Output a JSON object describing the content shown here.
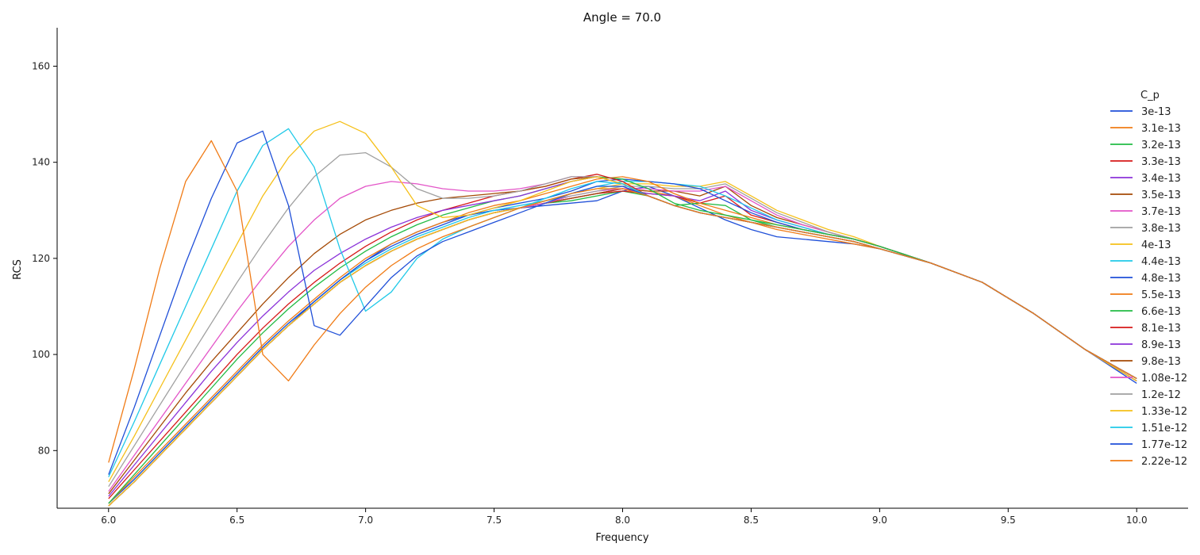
{
  "chart_data": {
    "type": "line",
    "title": "Angle = 70.0",
    "xlabel": "Frequency",
    "ylabel": "RCS",
    "xlim": [
      5.8,
      10.2
    ],
    "ylim": [
      68,
      168
    ],
    "xticks": [
      "6.0",
      "6.5",
      "7.0",
      "7.5",
      "8.0",
      "8.5",
      "9.0",
      "9.5",
      "10.0"
    ],
    "yticks": [
      "80",
      "100",
      "120",
      "140",
      "160"
    ],
    "grid": false,
    "legend": {
      "title": "C_p",
      "placement": "right"
    },
    "x": [
      6.0,
      6.1,
      6.2,
      6.3,
      6.4,
      6.5,
      6.6,
      6.7,
      6.8,
      6.9,
      7.0,
      7.1,
      7.2,
      7.3,
      7.4,
      7.5,
      7.6,
      7.7,
      7.8,
      7.9,
      8.0,
      8.1,
      8.2,
      8.3,
      8.4,
      8.5,
      8.6,
      8.7,
      8.8,
      8.9,
      9.0,
      9.2,
      9.4,
      9.6,
      9.8,
      10.0
    ],
    "series": [
      {
        "name": "3e-13",
        "color": "#1f4fd8",
        "values": [
          68.5,
          73.5,
          79,
          84.5,
          90,
          95.5,
          101,
          106,
          111,
          115.5,
          119.5,
          123,
          125.5,
          127.5,
          129,
          130,
          130.5,
          131,
          131.5,
          132,
          134,
          135,
          133,
          130.5,
          128,
          126,
          124.5,
          124,
          123.5,
          123,
          122,
          119,
          115,
          108.5,
          101,
          94
        ]
      },
      {
        "name": "3.1e-13",
        "color": "#f07b16",
        "values": [
          68.5,
          73.5,
          79,
          84.5,
          90,
          95.5,
          101,
          106,
          110.5,
          115,
          118.5,
          121.5,
          124,
          126,
          128,
          129.5,
          130.5,
          131.5,
          132.5,
          133.5,
          134.5,
          134,
          133,
          131,
          129,
          127.5,
          126,
          125,
          124,
          123,
          122,
          119,
          115,
          108.5,
          101,
          94.5
        ]
      },
      {
        "name": "3.2e-13",
        "color": "#22bb44",
        "values": [
          68.5,
          73.5,
          79,
          84.5,
          90,
          95.5,
          101,
          106,
          110.5,
          115,
          118.5,
          121.5,
          124,
          126,
          128,
          129.5,
          130.5,
          131.5,
          132,
          133,
          134,
          133,
          131,
          131.5,
          131,
          128,
          126.5,
          125.5,
          124.5,
          123.5,
          122,
          119,
          115,
          108.5,
          101,
          94.5
        ]
      },
      {
        "name": "3.3e-13",
        "color": "#d61a1a",
        "values": [
          68.5,
          73.5,
          79,
          84.5,
          90,
          95.5,
          101,
          106,
          110.5,
          115,
          118.5,
          121.5,
          124,
          126,
          128,
          129.5,
          130.5,
          131.5,
          132.5,
          133.5,
          134,
          133.5,
          133,
          131.5,
          133,
          129,
          127.5,
          126,
          125,
          124,
          122.5,
          119,
          115,
          108.5,
          101,
          94.5
        ]
      },
      {
        "name": "3.4e-13",
        "color": "#8b33d9",
        "values": [
          68.5,
          73.5,
          79,
          84.5,
          90,
          95.5,
          101,
          106,
          110.5,
          115,
          118.5,
          121.5,
          124,
          126,
          128,
          129.5,
          130.5,
          131.5,
          132.5,
          133.5,
          134.5,
          133.5,
          133,
          132,
          134,
          130,
          128,
          126.5,
          125,
          124,
          122.5,
          119,
          115,
          108.5,
          101,
          94.5
        ]
      },
      {
        "name": "3.5e-13",
        "color": "#a54a06",
        "values": [
          68.5,
          73.5,
          79,
          84.5,
          90,
          95.5,
          101,
          106,
          110.5,
          115,
          118.5,
          121.5,
          124,
          126,
          128,
          129.5,
          130.5,
          131.5,
          132.5,
          133.5,
          134.5,
          134,
          134,
          133,
          135,
          131,
          128.5,
          127,
          125.5,
          124,
          122.5,
          119,
          115,
          108.5,
          101,
          94.5
        ]
      },
      {
        "name": "3.7e-13",
        "color": "#e355c8",
        "values": [
          68.5,
          73.5,
          79,
          84.5,
          90,
          95.5,
          101,
          106,
          110.5,
          115,
          118.5,
          121.5,
          124,
          126,
          128,
          129.5,
          130.5,
          131.5,
          133,
          134,
          134.5,
          134.5,
          134,
          134,
          135,
          132,
          129,
          127,
          125.5,
          124,
          122.5,
          119,
          115,
          108.5,
          101,
          94.5
        ]
      },
      {
        "name": "3.8e-13",
        "color": "#a0a0a0",
        "values": [
          68.5,
          73.5,
          79,
          84.5,
          90,
          95.5,
          101,
          106,
          110.5,
          115,
          118.5,
          121.5,
          124,
          126,
          128,
          129.5,
          130.5,
          132,
          133,
          134,
          135,
          135,
          134.5,
          134.5,
          135.5,
          132.5,
          129.5,
          127.5,
          125.5,
          124,
          122.5,
          119,
          115,
          108.5,
          101,
          94.5
        ]
      },
      {
        "name": "4e-13",
        "color": "#f5c01a",
        "values": [
          68.5,
          73.5,
          79,
          84.5,
          90,
          95.5,
          101,
          106,
          110.5,
          115,
          118.5,
          121.5,
          124,
          126,
          128,
          129.5,
          130.5,
          132,
          133.5,
          134.5,
          135.5,
          135.5,
          135,
          135,
          136,
          133,
          130,
          128,
          126,
          124.5,
          122.5,
          119,
          115,
          108.5,
          101,
          94.5
        ]
      },
      {
        "name": "4.4e-13",
        "color": "#20c9e8",
        "values": [
          69,
          74,
          79.5,
          85,
          90.5,
          96,
          101.5,
          106.5,
          111,
          115.5,
          119,
          122,
          124.5,
          126.5,
          128.5,
          130,
          131,
          132,
          133.5,
          135,
          136,
          136,
          135.5,
          135,
          133,
          130.5,
          128,
          126.5,
          125,
          124,
          122.5,
          119,
          115,
          108.5,
          101,
          95
        ]
      },
      {
        "name": "4.8e-13",
        "color": "#1f4fd8",
        "values": [
          69,
          74,
          79.5,
          85,
          90.5,
          96,
          101.5,
          106.5,
          111,
          115.5,
          119.5,
          122.5,
          125,
          127,
          129,
          130.5,
          131.5,
          132.5,
          134,
          136,
          136.5,
          136,
          135.5,
          134.5,
          132,
          129.5,
          127.5,
          126,
          125,
          124,
          122.5,
          119,
          115,
          108.5,
          101,
          95
        ]
      },
      {
        "name": "5.5e-13",
        "color": "#f07b16",
        "values": [
          69,
          74.5,
          80,
          85.5,
          91,
          96.5,
          102,
          107,
          111.5,
          116,
          120,
          123,
          125.5,
          127.5,
          129.5,
          131,
          132,
          133.5,
          135,
          136.5,
          137,
          136,
          133.5,
          131.5,
          130,
          128.5,
          127,
          126,
          125,
          124,
          122.5,
          119,
          115,
          108.5,
          101,
          95
        ]
      },
      {
        "name": "6.6e-13",
        "color": "#22bb44",
        "values": [
          69,
          75,
          81,
          87,
          93,
          99,
          104.5,
          109.5,
          114,
          118,
          121.5,
          124.5,
          127,
          129,
          130.5,
          132,
          133,
          134.5,
          136,
          137,
          136.5,
          134.5,
          131.5,
          130,
          129,
          128,
          127,
          126,
          125,
          124,
          122.5,
          119,
          115,
          108.5,
          101,
          95
        ]
      },
      {
        "name": "8.1e-13",
        "color": "#d61a1a",
        "values": [
          70,
          76,
          82,
          88,
          94,
          100,
          105.5,
          110.5,
          115,
          119,
          122.5,
          125.5,
          128,
          130,
          131.5,
          133,
          134,
          135,
          136.5,
          137.5,
          136,
          133,
          131,
          129.5,
          128.5,
          127.5,
          126.5,
          125.5,
          124.5,
          123.5,
          122,
          119,
          115,
          108.5,
          101,
          95
        ]
      },
      {
        "name": "8.9e-13",
        "color": "#8b33d9",
        "values": [
          70.5,
          77,
          83.5,
          90,
          96.5,
          102.5,
          108,
          113,
          117.5,
          121,
          124,
          126.5,
          128.5,
          130,
          131,
          132,
          133,
          134.5,
          136,
          137,
          135.5,
          133,
          131,
          129.5,
          128.5,
          127.5,
          126.5,
          125.5,
          124.5,
          123.5,
          122,
          119,
          115,
          108.5,
          101,
          95
        ]
      },
      {
        "name": "9.8e-13",
        "color": "#a54a06",
        "values": [
          71,
          78,
          85,
          92,
          98.5,
          104.5,
          110.5,
          116,
          121,
          125,
          128,
          130,
          131.5,
          132.5,
          133,
          133.5,
          134,
          135,
          136.5,
          137,
          135.5,
          133,
          131,
          129.5,
          128.5,
          127.5,
          126.5,
          125.5,
          124.5,
          123.5,
          122,
          119,
          115,
          108.5,
          101,
          95
        ]
      },
      {
        "name": "1.08e-12",
        "color": "#e355c8",
        "values": [
          71.5,
          79,
          86.5,
          94,
          101.5,
          109,
          116,
          122.5,
          128,
          132.5,
          135,
          136,
          135.5,
          134.5,
          134,
          134,
          134.5,
          135.5,
          137,
          137,
          135.5,
          133,
          131,
          129.5,
          128.5,
          127.5,
          126.5,
          125.5,
          124.5,
          123.5,
          122,
          119,
          115,
          108.5,
          101,
          95
        ]
      },
      {
        "name": "1.2e-12",
        "color": "#a0a0a0",
        "values": [
          72.5,
          81,
          89.5,
          98,
          106.5,
          115,
          123,
          130.5,
          137,
          141.5,
          142,
          139,
          134.5,
          132.5,
          132.5,
          133,
          134,
          135.5,
          137,
          137,
          135.5,
          133,
          131,
          129.5,
          128.5,
          127.5,
          126.5,
          125.5,
          124.5,
          123.5,
          122,
          119,
          115,
          108.5,
          101,
          95
        ]
      },
      {
        "name": "1.33e-12",
        "color": "#f5c01a",
        "values": [
          73.5,
          83,
          93,
          103,
          113,
          123,
          133,
          141,
          146.5,
          148.5,
          146,
          139,
          131,
          128.5,
          129,
          130.5,
          132,
          134,
          136,
          137,
          135.5,
          133,
          131,
          129.5,
          128.5,
          127.5,
          126.5,
          125.5,
          124.5,
          123.5,
          122,
          119,
          115,
          108.5,
          101,
          95
        ]
      },
      {
        "name": "1.51e-12",
        "color": "#20c9e8",
        "values": [
          74.5,
          86,
          98,
          110,
          122,
          134,
          143.5,
          147,
          139,
          122,
          109,
          113,
          120,
          124,
          126.5,
          128.5,
          130.5,
          132.5,
          134.5,
          136,
          135.5,
          133,
          131,
          129.5,
          128.5,
          127.5,
          126.5,
          125.5,
          124.5,
          123.5,
          122,
          119,
          115,
          108.5,
          101,
          95
        ]
      },
      {
        "name": "1.77e-12",
        "color": "#1f4fd8",
        "values": [
          75,
          89,
          104,
          119,
          132.5,
          144,
          146.5,
          131,
          106,
          104,
          110,
          116,
          120.5,
          123.5,
          125.5,
          127.5,
          129.5,
          131.5,
          133.5,
          135,
          135,
          133,
          131,
          129.5,
          128.5,
          127.5,
          126.5,
          125.5,
          124.5,
          123.5,
          122,
          119,
          115,
          108.5,
          101,
          95
        ]
      },
      {
        "name": "2.22e-12",
        "color": "#f07b16",
        "values": [
          77.5,
          97,
          118,
          136,
          144.5,
          134,
          100,
          94.5,
          102,
          108.5,
          114,
          118.5,
          122,
          124.5,
          126.5,
          128.5,
          130.5,
          132,
          133.5,
          134.5,
          134.5,
          133,
          131,
          129.5,
          128.5,
          127.5,
          126.5,
          125.5,
          124.5,
          123.5,
          122,
          119,
          115,
          108.5,
          101,
          95
        ]
      }
    ]
  }
}
